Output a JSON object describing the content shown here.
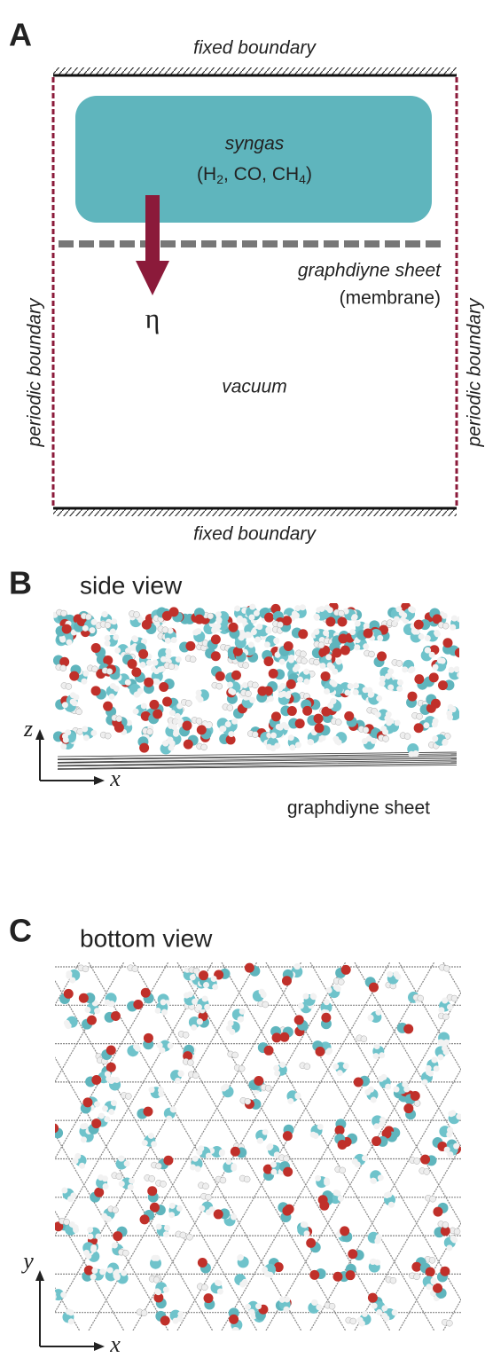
{
  "panel_a": {
    "label": "A",
    "top_boundary": "fixed boundary",
    "bottom_boundary": "fixed boundary",
    "left_boundary": "periodic boundary",
    "right_boundary": "periodic boundary",
    "syngas": {
      "title": "syngas",
      "formula": [
        "(H",
        "2",
        ", CO, CH",
        "4",
        ")"
      ]
    },
    "membrane": {
      "name": "graphdiyne sheet",
      "note": "(membrane)"
    },
    "flux_symbol": "η",
    "region": "vacuum"
  },
  "panel_b": {
    "label": "B",
    "title": "side view",
    "axis_vertical": "z",
    "axis_horizontal": "x",
    "caption": "graphdiyne sheet"
  },
  "panel_c": {
    "label": "C",
    "title": "bottom view",
    "axis_vertical": "y",
    "axis_horizontal": "x"
  }
}
